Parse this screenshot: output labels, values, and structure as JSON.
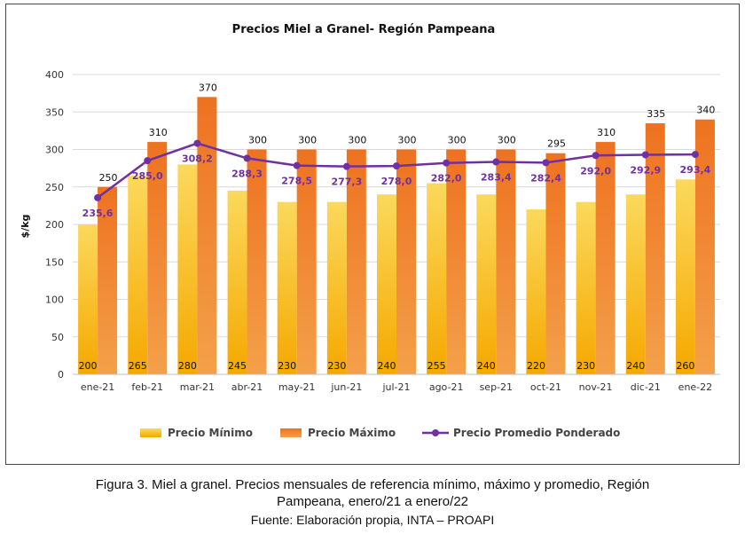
{
  "chart_data": {
    "type": "bar",
    "title": "Precios Miel a Granel- Región Pampeana",
    "ylabel": "$/kg",
    "xlabel": "",
    "ylim": [
      0,
      400
    ],
    "yticks": [
      "0",
      "50",
      "100",
      "150",
      "200",
      "250",
      "300",
      "350",
      "400"
    ],
    "grid": true,
    "legend_position": "bottom",
    "categories": [
      "ene-21",
      "feb-21",
      "mar-21",
      "abr-21",
      "may-21",
      "jun-21",
      "jul-21",
      "ago-21",
      "sep-21",
      "oct-21",
      "nov-21",
      "dic-21",
      "ene-22"
    ],
    "series": [
      {
        "name": "Precio Mínimo",
        "type": "bar",
        "color": "#F5B800",
        "values": [
          200,
          265,
          280,
          245,
          230,
          230,
          240,
          255,
          240,
          220,
          230,
          240,
          260
        ],
        "labels": [
          "200",
          "265",
          "280",
          "245",
          "230",
          "230",
          "240",
          "255",
          "240",
          "220",
          "230",
          "240",
          "260"
        ]
      },
      {
        "name": "Precio Máximo",
        "type": "bar",
        "color": "#EF7B22",
        "values": [
          250,
          310,
          370,
          300,
          300,
          300,
          300,
          300,
          300,
          295,
          310,
          335,
          340
        ],
        "labels": [
          "250",
          "310",
          "370",
          "300",
          "300",
          "300",
          "300",
          "300",
          "300",
          "295",
          "310",
          "335",
          "340"
        ]
      },
      {
        "name": "Precio Promedio Ponderado",
        "type": "line",
        "color": "#7030A0",
        "values": [
          235.6,
          285.0,
          308.2,
          288.3,
          278.5,
          277.3,
          278.0,
          282.0,
          283.4,
          282.4,
          292.0,
          292.9,
          293.4
        ],
        "labels": [
          "235,6",
          "285,0",
          "308,2",
          "288,3",
          "278,5",
          "277,3",
          "278,0",
          "282,0",
          "283,4",
          "282,4",
          "292,0",
          "292,9",
          "293,4"
        ]
      }
    ]
  },
  "caption": {
    "line1": "Figura 3. Miel a granel. Precios mensuales de referencia mínimo, máximo y promedio, Región",
    "line2": "Pampeana, enero/21 a enero/22",
    "line3": "Fuente: Elaboración propia, INTA – PROAPI"
  }
}
